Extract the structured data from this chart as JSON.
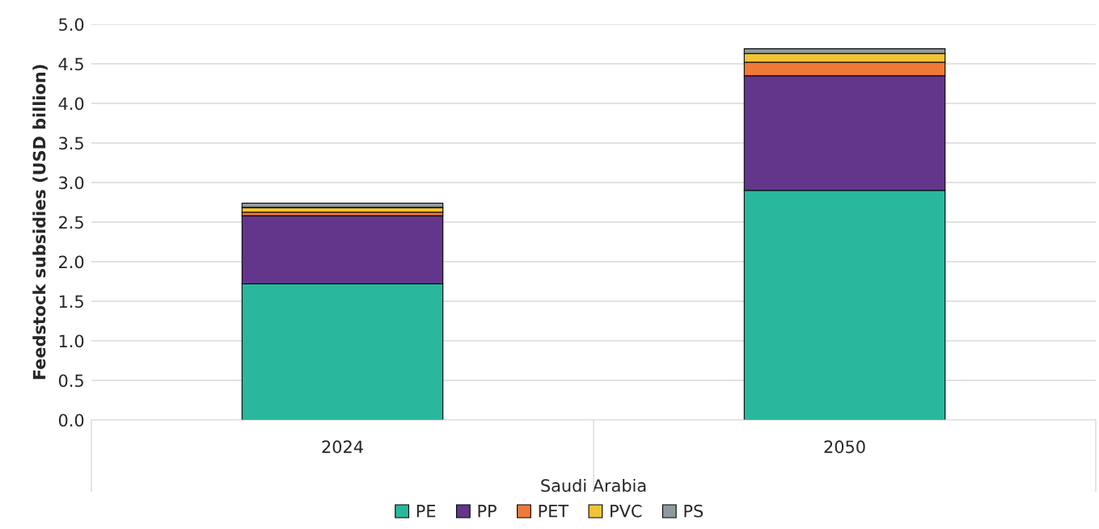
{
  "chart_data": {
    "type": "bar",
    "stacked": true,
    "ylabel": "Feedstock subsidies (USD billion)",
    "xlabel": "Saudi Arabia",
    "categories": [
      "2024",
      "2050"
    ],
    "series": [
      {
        "name": "PE",
        "color": "#29b89d",
        "values": [
          1.72,
          2.9
        ]
      },
      {
        "name": "PP",
        "color": "#63368c",
        "values": [
          0.86,
          1.45
        ]
      },
      {
        "name": "PET",
        "color": "#ef7a37",
        "values": [
          0.045,
          0.17
        ]
      },
      {
        "name": "PVC",
        "color": "#f2c335",
        "values": [
          0.06,
          0.11
        ]
      },
      {
        "name": "PS",
        "color": "#8f9a9e",
        "values": [
          0.055,
          0.06
        ]
      }
    ],
    "ylim": [
      0,
      5
    ],
    "yticks": [
      {
        "value": 0,
        "label": "0.0"
      },
      {
        "value": 0.5,
        "label": "0.5"
      },
      {
        "value": 1,
        "label": "1.0"
      },
      {
        "value": 1.5,
        "label": "1.5"
      },
      {
        "value": 2,
        "label": "2.0"
      },
      {
        "value": 2.5,
        "label": "2.5"
      },
      {
        "value": 3,
        "label": "3.0"
      },
      {
        "value": 3.5,
        "label": "3.5"
      },
      {
        "value": 4,
        "label": "4.0"
      },
      {
        "value": 4.5,
        "label": "4.5"
      },
      {
        "value": 5,
        "label": "5.0"
      }
    ],
    "grid": "y",
    "legend": "bottom"
  }
}
